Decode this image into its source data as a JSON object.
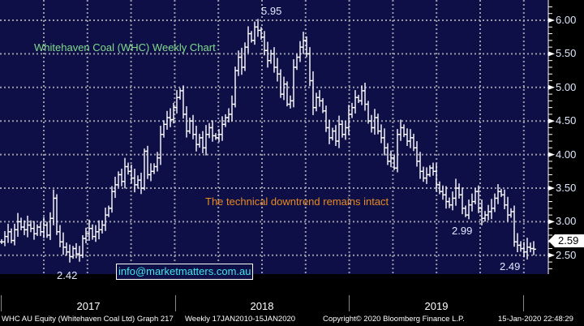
{
  "chart_data": {
    "type": "bar",
    "subtype": "weekly-hlc",
    "title": "Whitehaven Coal (WHC) Weekly Chart",
    "annotation": "The technical downtrend remains intact",
    "ylim": [
      2.2,
      6.3
    ],
    "y_ticks": [
      "6.00",
      "5.50",
      "5.00",
      "4.50",
      "4.00",
      "3.50",
      "3.00",
      "2.50"
    ],
    "y_tick_values": [
      6.0,
      5.5,
      5.0,
      4.5,
      4.0,
      3.5,
      3.0,
      2.5
    ],
    "x_labels": [
      "2017",
      "2018",
      "2019"
    ],
    "grid": true,
    "last_price": "2.59",
    "price_labels": [
      {
        "text": "5.95",
        "value": 5.95
      },
      {
        "text": "2.42",
        "value": 2.42
      },
      {
        "text": "2.99",
        "value": 2.99
      },
      {
        "text": "2.49",
        "value": 2.49
      }
    ],
    "close": [
      2.7,
      2.78,
      2.85,
      2.72,
      2.88,
      3.0,
      2.92,
      2.88,
      2.95,
      2.9,
      2.82,
      2.92,
      2.85,
      2.95,
      2.8,
      3.05,
      3.35,
      2.85,
      2.7,
      2.62,
      2.55,
      2.48,
      2.6,
      2.52,
      2.5,
      2.75,
      2.82,
      2.9,
      2.78,
      2.85,
      2.88,
      2.95,
      3.1,
      3.2,
      3.45,
      3.55,
      3.7,
      3.6,
      3.82,
      3.75,
      3.65,
      3.55,
      3.62,
      3.5,
      4.05,
      3.7,
      3.75,
      3.82,
      3.95,
      4.3,
      4.45,
      4.55,
      4.52,
      4.7,
      4.85,
      4.95,
      4.6,
      4.35,
      4.5,
      4.3,
      4.15,
      4.25,
      4.1,
      4.3,
      4.4,
      4.28,
      4.25,
      4.3,
      4.45,
      4.55,
      4.6,
      4.75,
      5.25,
      5.45,
      5.3,
      5.6,
      5.8,
      5.7,
      5.9,
      5.85,
      5.75,
      5.55,
      5.4,
      5.5,
      5.3,
      5.2,
      4.9,
      5.05,
      4.75,
      4.8,
      5.3,
      5.45,
      5.6,
      5.7,
      5.5,
      5.1,
      4.7,
      4.85,
      4.8,
      4.65,
      4.4,
      4.25,
      4.35,
      4.2,
      4.45,
      4.3,
      4.4,
      4.6,
      4.7,
      4.85,
      4.8,
      4.95,
      4.75,
      4.5,
      4.4,
      4.55,
      4.35,
      4.25,
      4.1,
      3.9,
      3.95,
      3.8,
      4.3,
      4.4,
      4.3,
      4.2,
      4.25,
      4.1,
      3.9,
      3.75,
      3.65,
      3.7,
      3.8,
      3.75,
      3.55,
      3.45,
      3.4,
      3.3,
      3.25,
      3.35,
      3.5,
      3.4,
      3.2,
      3.1,
      3.25,
      3.3,
      3.45,
      3.2,
      3.05,
      3.1,
      3.15,
      3.2,
      3.35,
      3.45,
      3.4,
      3.25,
      3.1,
      3.15,
      2.7,
      2.65,
      2.6,
      2.55,
      2.62,
      2.6,
      2.59
    ]
  },
  "overlay": {
    "email": "info@marketmatters.com.au"
  },
  "footer": {
    "security": "WHC AU Equity (Whitehaven Coal Ltd) Graph 217",
    "range": "Weekly 17JAN2010-15JAN2020",
    "copyright": "Copyright© 2020 Bloomberg Finance L.P.",
    "timestamp": "15-Jan-2020 22:48:29"
  },
  "colors": {
    "background": "#0f0f48",
    "bars": "#ffffff",
    "title": "#7fdc8a",
    "annotation": "#e88a1e",
    "email": "#3fe6ee"
  }
}
